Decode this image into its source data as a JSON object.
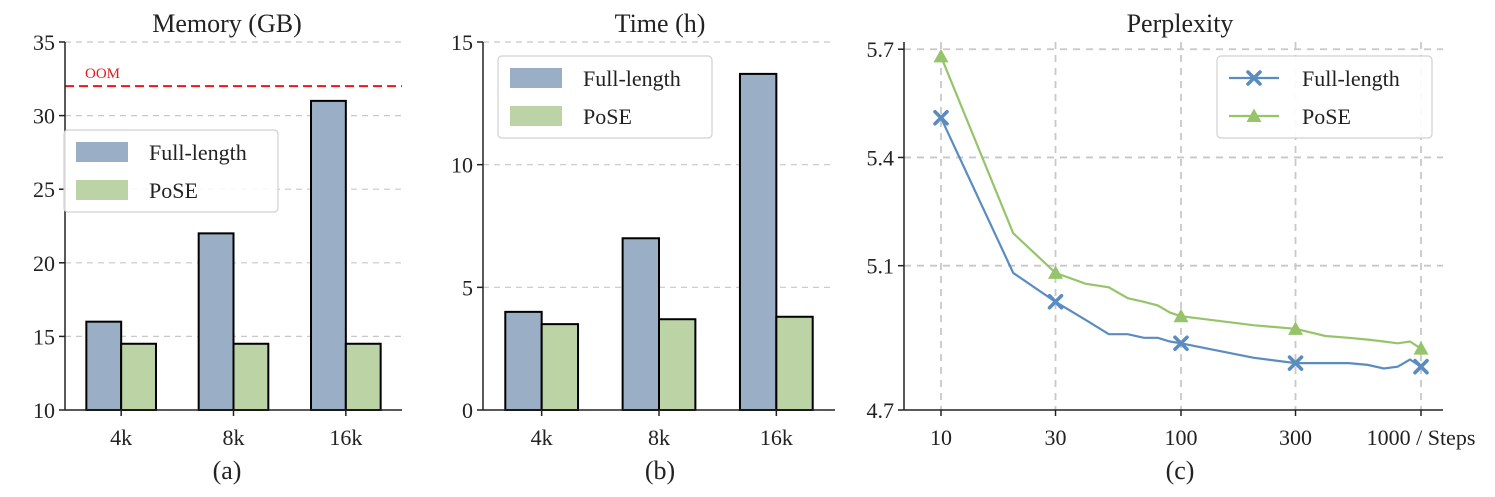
{
  "colors": {
    "full": "#9aafc6",
    "pose": "#bcd3a5",
    "full_line": "#5b8cc0",
    "pose_line": "#96c46a",
    "oom": "#e41a1c",
    "grid": "#c8c8c8",
    "edge": "#000000"
  },
  "panels": [
    {
      "label": "(a)"
    },
    {
      "label": "(b)"
    },
    {
      "label": "(c)"
    }
  ],
  "chart_data": [
    {
      "type": "bar",
      "title": "Memory (GB)",
      "categories": [
        "4k",
        "8k",
        "16k"
      ],
      "series": [
        {
          "name": "Full-length",
          "values": [
            16,
            22,
            31
          ]
        },
        {
          "name": "PoSE",
          "values": [
            14.5,
            14.5,
            14.5
          ]
        }
      ],
      "ylim": [
        10,
        35
      ],
      "yticks": [
        10,
        15,
        20,
        25,
        30,
        35
      ],
      "grid": "horizontal dashed",
      "legend": "middle-left",
      "annotation": {
        "text": "OOM",
        "y": 32
      }
    },
    {
      "type": "bar",
      "title": "Time (h)",
      "categories": [
        "4k",
        "8k",
        "16k"
      ],
      "series": [
        {
          "name": "Full-length",
          "values": [
            4.0,
            7.0,
            13.7
          ]
        },
        {
          "name": "PoSE",
          "values": [
            3.5,
            3.7,
            3.8
          ]
        }
      ],
      "ylim": [
        0,
        15
      ],
      "yticks": [
        0,
        5,
        10,
        15
      ],
      "grid": "horizontal dashed",
      "legend": "top-left"
    },
    {
      "type": "line",
      "title": "Perplexity",
      "xlabel": "Steps",
      "xscale": "log",
      "xlim": [
        8,
        1150
      ],
      "xticks": [
        10,
        30,
        100,
        300,
        1000
      ],
      "xtick_labels": [
        "10",
        "30",
        "100",
        "300",
        "1000 / Steps"
      ],
      "ylim": [
        4.7,
        5.72
      ],
      "yticks": [
        4.7,
        5.1,
        5.4,
        5.7
      ],
      "ytick_labels": [
        "4.7",
        "5.1",
        "5.4",
        "5.7"
      ],
      "grid": "both dashed",
      "legend": "top-right",
      "series": [
        {
          "name": "Full-length",
          "marker": "x",
          "x": [
            10,
            20,
            30,
            40,
            50,
            60,
            70,
            80,
            90,
            100,
            200,
            300,
            400,
            500,
            600,
            700,
            800,
            900,
            1000
          ],
          "y": [
            5.51,
            5.08,
            5.0,
            4.95,
            4.91,
            4.91,
            4.9,
            4.9,
            4.89,
            4.885,
            4.845,
            4.83,
            4.83,
            4.83,
            4.825,
            4.815,
            4.82,
            4.84,
            4.82
          ],
          "marker_x": [
            10,
            30,
            100,
            300,
            1000
          ]
        },
        {
          "name": "PoSE",
          "marker": "triangle",
          "x": [
            10,
            20,
            30,
            40,
            50,
            60,
            70,
            80,
            90,
            100,
            200,
            300,
            400,
            500,
            600,
            700,
            800,
            900,
            1000
          ],
          "y": [
            5.68,
            5.19,
            5.08,
            5.05,
            5.04,
            5.01,
            5.0,
            4.99,
            4.97,
            4.96,
            4.935,
            4.925,
            4.905,
            4.9,
            4.895,
            4.89,
            4.885,
            4.89,
            4.87
          ],
          "marker_x": [
            10,
            30,
            100,
            300,
            1000
          ]
        }
      ]
    }
  ]
}
